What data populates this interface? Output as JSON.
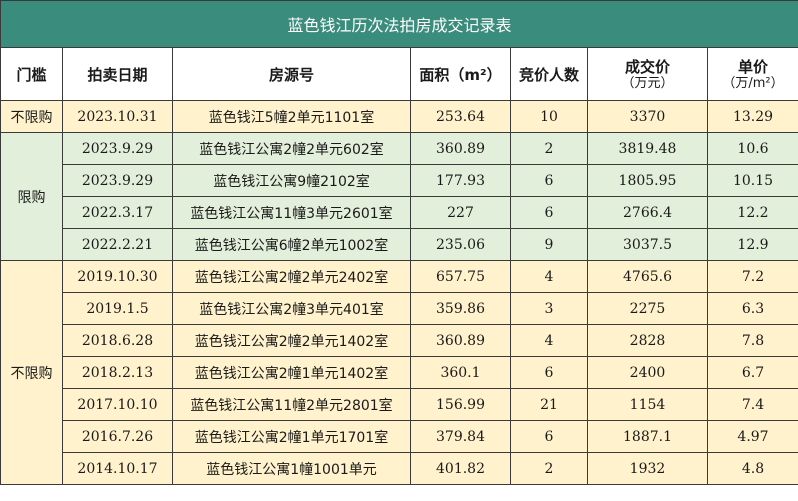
{
  "title": "蓝色钱江历次法拍房成交记录表",
  "headers": {
    "tier": "门槛",
    "date": "拍卖日期",
    "property": "房源号",
    "area": "面积（m²）",
    "bidders": "竞价人数",
    "price_main": "成交价",
    "price_unit": "（万元）",
    "unit_price_main": "单价",
    "unit_price_unit": "（万/m²）"
  },
  "groups": [
    {
      "tier": "不限购",
      "rows": [
        {
          "date": "2023.10.31",
          "property": "蓝色钱江5幢2单元1101室",
          "area": "253.64",
          "bidders": "10",
          "price": "3370",
          "unit_price": "13.29"
        }
      ]
    },
    {
      "tier": "限购",
      "rows": [
        {
          "date": "2023.9.29",
          "property": "蓝色钱江公寓2幢2单元602室",
          "area": "360.89",
          "bidders": "2",
          "price": "3819.48",
          "unit_price": "10.6"
        },
        {
          "date": "2023.9.29",
          "property": "蓝色钱江公寓9幢2102室",
          "area": "177.93",
          "bidders": "6",
          "price": "1805.95",
          "unit_price": "10.15"
        },
        {
          "date": "2022.3.17",
          "property": "蓝色钱江公寓11幢3单元2601室",
          "area": "227",
          "bidders": "6",
          "price": "2766.4",
          "unit_price": "12.2"
        },
        {
          "date": "2022.2.21",
          "property": "蓝色钱江公寓6幢2单元1002室",
          "area": "235.06",
          "bidders": "9",
          "price": "3037.5",
          "unit_price": "12.9"
        }
      ]
    },
    {
      "tier": "不限购",
      "rows": [
        {
          "date": "2019.10.30",
          "property": "蓝色钱江公寓2幢2单元2402室",
          "area": "657.75",
          "bidders": "4",
          "price": "4765.6",
          "unit_price": "7.2"
        },
        {
          "date": "2019.1.5",
          "property": "蓝色钱江公寓2幢3单元401室",
          "area": "359.86",
          "bidders": "3",
          "price": "2275",
          "unit_price": "6.3"
        },
        {
          "date": "2018.6.28",
          "property": "蓝色钱江公寓2幢2单元1402室",
          "area": "360.89",
          "bidders": "4",
          "price": "2828",
          "unit_price": "7.8"
        },
        {
          "date": "2018.2.13",
          "property": "蓝色钱江公寓2幢1单元1402室",
          "area": "360.1",
          "bidders": "6",
          "price": "2400",
          "unit_price": "6.7"
        },
        {
          "date": "2017.10.10",
          "property": "蓝色钱江公寓11幢2单元2801室",
          "area": "156.99",
          "bidders": "21",
          "price": "1154",
          "unit_price": "7.4"
        },
        {
          "date": "2016.7.26",
          "property": "蓝色钱江公寓2幢1单元1701室",
          "area": "379.84",
          "bidders": "6",
          "price": "1887.1",
          "unit_price": "4.97"
        },
        {
          "date": "2014.10.17",
          "property": "蓝色钱江公寓1幢1001单元",
          "area": "401.82",
          "bidders": "2",
          "price": "1932",
          "unit_price": "4.8"
        }
      ]
    }
  ]
}
